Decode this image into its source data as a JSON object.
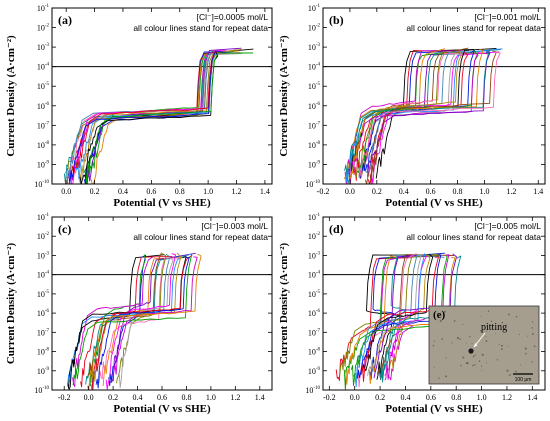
{
  "chart_data": [
    {
      "type": "line",
      "panel_label": "(a)",
      "annotation_1": "[Cl⁻]=0.0005 mol/L",
      "annotation_2": "all colour lines stand for repeat data",
      "xlabel": "Potential (V vs SHE)",
      "ylabel": "Current Density (A·cm⁻²)",
      "xlim": [
        -0.1,
        1.45
      ],
      "ylim_log10": [
        -10,
        -1
      ],
      "x_ticks": [
        "0.0",
        "0.2",
        "0.4",
        "0.6",
        "0.8",
        "1.0",
        "1.2",
        "1.4"
      ],
      "y_tick_exponents": [
        -10,
        -9,
        -8,
        -7,
        -6,
        -5,
        -4,
        -3,
        -2,
        -1
      ],
      "reference_line_log10": -4,
      "curves": {
        "count": 20,
        "start_x": [
          -0.02,
          0.2
        ],
        "start_log10": -10,
        "passive_log10": [
          -6.5,
          -6.1
        ],
        "breakdown_x": [
          0.92,
          1.02
        ],
        "end_x": [
          1.05,
          1.32
        ],
        "end_log10": -3.2
      }
    },
    {
      "type": "line",
      "panel_label": "(b)",
      "annotation_1": "[Cl⁻]=0.001 mol/L",
      "annotation_2": "all colour lines stand for repeat data",
      "xlabel": "Potential (V vs SHE)",
      "ylabel": "Current Density (A·cm⁻²)",
      "xlim": [
        -0.2,
        1.45
      ],
      "ylim_log10": [
        -10,
        -1
      ],
      "x_ticks": [
        "-0.2",
        "0.0",
        "0.2",
        "0.4",
        "0.6",
        "0.8",
        "1.0",
        "1.2",
        "1.4"
      ],
      "y_tick_exponents": [
        -10,
        -9,
        -8,
        -7,
        -6,
        -5,
        -4,
        -3,
        -2,
        -1
      ],
      "reference_line_log10": -4,
      "curves": {
        "count": 26,
        "start_x": [
          -0.05,
          0.2
        ],
        "start_log10": -9.8,
        "passive_log10": [
          -6.3,
          -5.7
        ],
        "breakdown_x": [
          0.4,
          1.05
        ],
        "end_x": [
          0.7,
          1.15
        ],
        "end_log10": -3.2
      }
    },
    {
      "type": "line",
      "panel_label": "(c)",
      "annotation_1": "[Cl⁻]=0.003 mol/L",
      "annotation_2": "all colour lines stand for repeat data",
      "xlabel": "Potential (V vs SHE)",
      "ylabel": "Current Density (A·cm⁻²)",
      "xlim": [
        -0.3,
        1.5
      ],
      "ylim_log10": [
        -10,
        -1
      ],
      "x_ticks": [
        "-0.2",
        "0.0",
        "0.2",
        "0.4",
        "0.6",
        "0.8",
        "1.0",
        "1.2",
        "1.4"
      ],
      "y_tick_exponents": [
        -10,
        -9,
        -8,
        -7,
        -6,
        -5,
        -4,
        -3,
        -2,
        -1
      ],
      "reference_line_log10": -4,
      "curves": {
        "count": 22,
        "start_x": [
          -0.18,
          0.25
        ],
        "start_log10": -9.8,
        "passive_log10": [
          -6.5,
          -5.4
        ],
        "breakdown_x": [
          0.35,
          0.85
        ],
        "end_x": [
          0.4,
          0.9
        ],
        "end_log10": -3.0
      }
    },
    {
      "type": "line",
      "panel_label": "(d)",
      "annotation_1": "[Cl⁻]=0.005 mol/L",
      "annotation_2": "all colour lines stand for repeat data",
      "xlabel": "Potential (V vs SHE)",
      "ylabel": "Current Density (A·cm⁻²)",
      "xlim": [
        -0.25,
        1.5
      ],
      "ylim_log10": [
        -10,
        -1
      ],
      "x_ticks": [
        "-0.2",
        "0.0",
        "0.2",
        "0.4",
        "0.6",
        "0.8",
        "1.0",
        "1.2",
        "1.4"
      ],
      "y_tick_exponents": [
        -10,
        -9,
        -8,
        -7,
        -6,
        -5,
        -4,
        -3,
        -2,
        -1
      ],
      "reference_line_log10": -4,
      "curves": {
        "count": 24,
        "start_x": [
          -0.15,
          0.3
        ],
        "start_log10": -9.5,
        "passive_log10": [
          -6.8,
          -5.6
        ],
        "breakdown_x": [
          0.1,
          0.78
        ],
        "end_x": [
          0.15,
          0.8
        ],
        "end_log10": -3.0
      },
      "inset": {
        "label": "(e)",
        "annotation": "pitting",
        "scale_bar": "100 μm"
      }
    }
  ],
  "colors": {
    "palette": [
      "#000000",
      "#e8001c",
      "#0018e0",
      "#00a000",
      "#d000d0",
      "#e08000",
      "#7b00c8",
      "#008b8b",
      "#8b4513",
      "#ff69b4",
      "#808000",
      "#4682b4",
      "#a0a0a0",
      "#ff00ff",
      "#1e90ff",
      "#b8860b"
    ],
    "reference_line": "#000000",
    "inset_background": "#a59d8e"
  }
}
